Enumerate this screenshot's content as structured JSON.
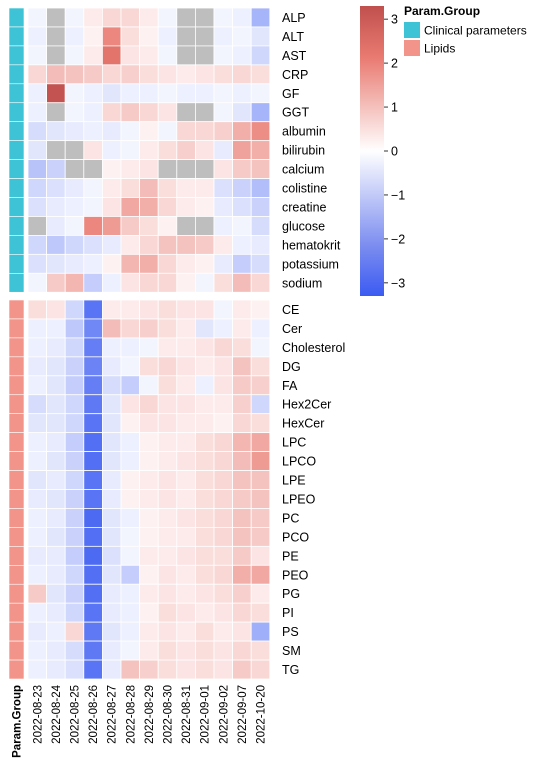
{
  "chart_data": {
    "type": "heatmap",
    "columns": [
      "2022-08-23",
      "2022-08-24",
      "2022-08-25",
      "2022-08-26",
      "2022-08-27",
      "2022-08-28",
      "2022-08-29",
      "2022-08-30",
      "2022-08-31",
      "2022-09-01",
      "2022-09-02",
      "2022-09-07",
      "2022-10-20"
    ],
    "annotation_label": "Param.Group",
    "groups": [
      {
        "name": "Clinical parameters",
        "color": "#3ec3d6",
        "rows": [
          "ALP",
          "ALT",
          "AST",
          "CRP",
          "GF",
          "GGT",
          "albumin",
          "bilirubin",
          "calcium",
          "colistine",
          "creatine",
          "glucose",
          "hematokrit",
          "potassium",
          "sodium"
        ],
        "values": [
          [
            -0.2,
            null,
            -0.2,
            0.3,
            0.6,
            0.6,
            0.3,
            -0.2,
            null,
            null,
            -0.2,
            -0.3,
            -1.5
          ],
          [
            -0.3,
            null,
            -0.3,
            0.2,
            1.8,
            0.5,
            0.2,
            -0.3,
            null,
            null,
            -0.3,
            -0.2,
            -0.5
          ],
          [
            -0.2,
            null,
            -0.2,
            0.3,
            2.2,
            0.4,
            0.3,
            -0.2,
            null,
            null,
            -0.2,
            -0.3,
            -0.8
          ],
          [
            0.6,
            1.0,
            0.9,
            0.8,
            0.6,
            0.7,
            0.5,
            0.4,
            0.3,
            0.4,
            0.5,
            0.6,
            0.5
          ],
          [
            -0.3,
            3.2,
            -0.2,
            -0.3,
            -0.5,
            -0.3,
            -0.3,
            -0.2,
            -0.3,
            -0.3,
            -0.2,
            -0.3,
            -0.2
          ],
          [
            -0.3,
            null,
            -0.2,
            -0.3,
            0.6,
            0.8,
            0.6,
            0.4,
            null,
            null,
            -0.2,
            -0.5,
            -1.5
          ],
          [
            -0.7,
            -0.5,
            -0.4,
            -0.3,
            -0.4,
            -0.2,
            0.2,
            -0.2,
            0.6,
            0.6,
            0.7,
            1.2,
            1.7
          ],
          [
            -0.5,
            null,
            null,
            0.4,
            -0.3,
            -0.2,
            0.3,
            0.5,
            0.7,
            0.4,
            -0.4,
            1.4,
            1.2
          ],
          [
            -1.2,
            -0.9,
            null,
            null,
            0.2,
            0.3,
            0.4,
            null,
            null,
            null,
            0.4,
            0.8,
            0.9
          ],
          [
            -0.8,
            -0.6,
            -0.4,
            -0.2,
            0.3,
            0.5,
            1.0,
            0.5,
            0.3,
            0.3,
            -0.6,
            -0.9,
            -1.3
          ],
          [
            -0.6,
            -0.4,
            -0.3,
            -0.2,
            0.4,
            1.3,
            1.2,
            0.6,
            0.3,
            0.2,
            -0.4,
            -0.6,
            -0.9
          ],
          [
            null,
            -0.4,
            -0.2,
            1.8,
            1.5,
            0.8,
            0.5,
            0.2,
            null,
            null,
            -0.3,
            -0.2,
            -0.7
          ],
          [
            -0.8,
            -1.1,
            -0.8,
            -0.6,
            -0.4,
            0.3,
            0.6,
            0.9,
            0.9,
            0.8,
            0.3,
            -0.3,
            -0.4
          ],
          [
            -0.6,
            -0.5,
            -0.4,
            -0.3,
            0.2,
            1.1,
            1.2,
            0.6,
            0.3,
            0.2,
            -0.4,
            -1.0,
            -0.7
          ],
          [
            -0.2,
            0.8,
            1.1,
            -1.0,
            -0.3,
            0.4,
            0.6,
            0.6,
            0.2,
            -0.2,
            0.5,
            1.0,
            0.6
          ]
        ]
      },
      {
        "name": "Lipids",
        "color": "#f2948a",
        "rows": [
          "CE",
          "Cer",
          "Cholesterol",
          "DG",
          "FA",
          "Hex2Cer",
          "HexCer",
          "LPC",
          "LPCO",
          "LPE",
          "LPEO",
          "PC",
          "PCO",
          "PE",
          "PEO",
          "PG",
          "PI",
          "PS",
          "SM",
          "TG"
        ],
        "values": [
          [
            0.5,
            0.4,
            -0.8,
            -2.8,
            0.3,
            0.3,
            0.4,
            0.5,
            0.4,
            0.4,
            -0.2,
            0.3,
            0.2
          ],
          [
            -0.3,
            -0.3,
            -1.1,
            -2.4,
            1.0,
            0.6,
            0.7,
            0.5,
            0.3,
            -0.5,
            -0.3,
            0.3,
            -0.3
          ],
          [
            -0.3,
            -0.4,
            -0.8,
            -2.6,
            -0.3,
            -0.3,
            -0.2,
            0.3,
            0.3,
            0.4,
            0.6,
            0.5,
            -0.2
          ],
          [
            -0.4,
            -0.5,
            -0.9,
            -2.5,
            -0.4,
            -0.2,
            0.5,
            0.6,
            0.4,
            0.3,
            0.4,
            0.9,
            0.5
          ],
          [
            -0.3,
            -0.5,
            -1.0,
            -2.6,
            -0.7,
            -1.0,
            -0.2,
            0.5,
            0.3,
            -0.3,
            0.4,
            0.8,
            0.7
          ],
          [
            -0.7,
            -0.5,
            -0.8,
            -2.7,
            -0.5,
            0.4,
            0.6,
            0.4,
            0.4,
            0.3,
            0.3,
            0.7,
            -0.8
          ],
          [
            -0.5,
            -0.5,
            -0.8,
            -2.8,
            -0.5,
            0.2,
            0.4,
            0.4,
            0.3,
            0.3,
            0.2,
            0.6,
            0.5
          ],
          [
            -0.3,
            -0.4,
            -1.0,
            -2.9,
            -0.5,
            -0.3,
            0.2,
            0.3,
            0.3,
            0.5,
            0.6,
            1.1,
            1.3
          ],
          [
            -0.3,
            -0.5,
            -0.9,
            -2.9,
            -0.5,
            -0.3,
            0.2,
            0.3,
            0.4,
            0.5,
            0.6,
            1.0,
            1.5
          ],
          [
            -0.5,
            -0.4,
            -0.8,
            -2.8,
            -0.4,
            0.2,
            0.3,
            0.4,
            0.3,
            0.5,
            0.6,
            0.9,
            0.9
          ],
          [
            -0.4,
            -0.5,
            -0.9,
            -2.8,
            -0.4,
            0.2,
            0.3,
            0.4,
            0.3,
            0.5,
            0.6,
            0.8,
            0.9
          ],
          [
            -0.3,
            -0.4,
            -0.9,
            -3.0,
            -0.5,
            -0.3,
            0.2,
            0.3,
            0.4,
            0.5,
            0.6,
            0.9,
            0.8
          ],
          [
            -0.3,
            -0.5,
            -0.9,
            -2.9,
            -0.5,
            -0.2,
            0.2,
            0.3,
            0.3,
            0.5,
            0.6,
            0.9,
            0.8
          ],
          [
            -0.4,
            -0.4,
            -1.0,
            -3.0,
            -0.6,
            -0.2,
            0.3,
            0.3,
            0.4,
            0.5,
            0.5,
            0.8,
            0.4
          ],
          [
            -0.3,
            -0.4,
            -0.8,
            -2.9,
            -0.5,
            -1.0,
            0.2,
            0.4,
            0.3,
            0.5,
            0.6,
            1.2,
            1.3
          ],
          [
            0.8,
            -0.5,
            -0.9,
            -2.9,
            -0.4,
            -0.3,
            0.3,
            0.4,
            0.3,
            0.4,
            0.5,
            0.7,
            0.3
          ],
          [
            -0.3,
            -0.4,
            -0.8,
            -2.8,
            -0.4,
            -0.3,
            0.2,
            0.5,
            0.4,
            0.3,
            0.4,
            0.6,
            0.5
          ],
          [
            -0.4,
            -0.3,
            0.6,
            -2.7,
            -0.5,
            -0.3,
            0.3,
            0.4,
            0.3,
            0.5,
            0.3,
            0.4,
            -1.6
          ],
          [
            -0.3,
            -0.4,
            -0.7,
            -2.7,
            -0.4,
            -0.2,
            0.3,
            0.5,
            0.4,
            0.5,
            0.4,
            0.6,
            0.5
          ],
          [
            -0.3,
            -0.4,
            -0.6,
            -2.8,
            -0.4,
            0.9,
            0.7,
            0.5,
            0.4,
            0.5,
            0.4,
            0.8,
            0.6
          ]
        ]
      }
    ],
    "missing_color": "#bebebe",
    "color_scale": {
      "min": -3.3,
      "max": 3.3,
      "ticks": [
        3,
        2,
        1,
        0,
        -1,
        -2,
        -3
      ],
      "tick_labels": [
        "3",
        "2",
        "1",
        "0",
        "−1",
        "−2",
        "−3"
      ],
      "colors": [
        "#3b5bf2",
        "#ffffff",
        "#c0504d"
      ]
    },
    "legend": {
      "title": "Param.Group",
      "items": [
        {
          "label": "Clinical parameters",
          "color": "#3ec3d6"
        },
        {
          "label": "Lipids",
          "color": "#f2948a"
        }
      ],
      "placement": "top-right"
    }
  }
}
